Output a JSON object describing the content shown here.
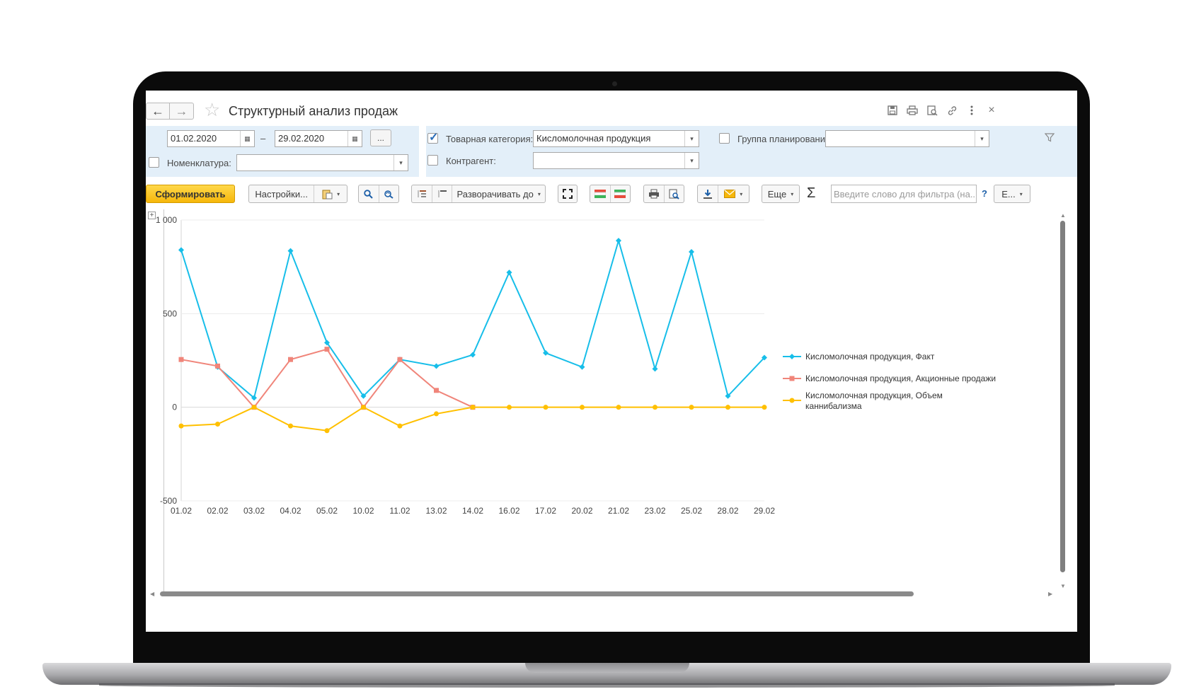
{
  "window": {
    "title": "Структурный анализ продаж",
    "back_label": "←",
    "forward_label": "→",
    "favorite_icon": "star-icon",
    "header_icons": [
      "save-icon",
      "print-icon",
      "preview-icon",
      "link-icon",
      "more-icon",
      "close-icon"
    ],
    "close_label": "×"
  },
  "filters": {
    "date_from": "01.02.2020",
    "date_separator": "–",
    "date_to": "29.02.2020",
    "period_button": "...",
    "nomenclature_label": "Номенклатура:",
    "nomenclature_value": "",
    "category_label": "Товарная категория:",
    "category_value": "Кисломолочная продукция",
    "category_checked": true,
    "counterparty_label": "Контрагент:",
    "counterparty_value": "",
    "planning_group_label": "Группа планирования:",
    "planning_group_value": ""
  },
  "toolbar": {
    "generate_label": "Сформировать",
    "settings_label": "Настройки...",
    "expand_to_label": "Разворачивать до",
    "more_label": "Еще",
    "sum_label": "Σ",
    "filter_placeholder": "Введите слово для фильтра (на...",
    "help_label": "?",
    "extra_label": "Е..."
  },
  "colors": {
    "accent_yellow": "#F6B70B",
    "filter_panel": "#E3EFF9",
    "series_fact": "#17BEE9",
    "series_promo": "#F0857A",
    "series_cannibal": "#FFC000"
  },
  "chart_data": {
    "type": "line",
    "title": "",
    "xlabel": "",
    "ylabel": "",
    "categories": [
      "01.02",
      "02.02",
      "03.02",
      "04.02",
      "05.02",
      "10.02",
      "11.02",
      "13.02",
      "14.02",
      "16.02",
      "17.02",
      "20.02",
      "21.02",
      "23.02",
      "25.02",
      "28.02",
      "29.02"
    ],
    "ylim": [
      -500,
      1000
    ],
    "yticks": [
      -500,
      0,
      500,
      1000
    ],
    "ytick_labels": [
      "-500",
      "0",
      "500",
      "1 000"
    ],
    "grid": true,
    "legend": "right",
    "series": [
      {
        "name": "Кисломолочная продукция, Факт",
        "marker": "diamond",
        "values": [
          840,
          215,
          50,
          835,
          345,
          60,
          255,
          220,
          280,
          720,
          290,
          215,
          890,
          205,
          830,
          60,
          265
        ]
      },
      {
        "name": "Кисломолочная продукция, Акционные продажи",
        "marker": "square",
        "values": [
          255,
          220,
          0,
          255,
          310,
          0,
          255,
          90,
          0,
          null,
          null,
          null,
          null,
          null,
          null,
          null,
          null
        ]
      },
      {
        "name": "Кисломолочная продукция, Объем каннибализма",
        "marker": "circle",
        "values": [
          -100,
          -90,
          0,
          -100,
          -125,
          0,
          -100,
          -35,
          0,
          0,
          0,
          0,
          0,
          0,
          0,
          0,
          0
        ]
      }
    ]
  }
}
